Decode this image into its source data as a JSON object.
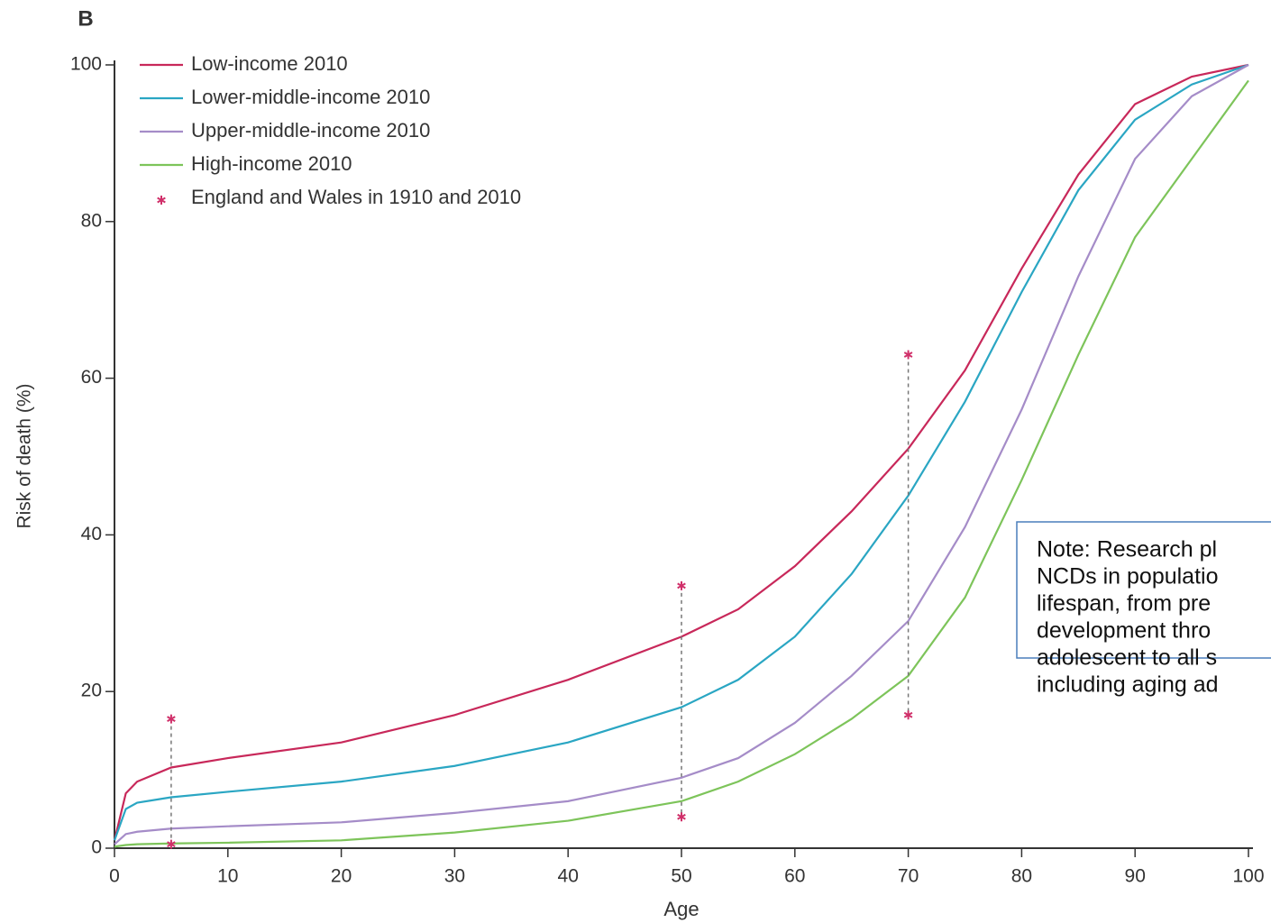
{
  "chart_data": {
    "type": "line",
    "panel_label": "B",
    "xlabel": "Age",
    "ylabel": "Risk of death (%)",
    "xlim": [
      0,
      100
    ],
    "ylim": [
      0,
      100
    ],
    "xticks": [
      0,
      10,
      20,
      30,
      40,
      50,
      60,
      70,
      80,
      90,
      100
    ],
    "yticks": [
      0,
      20,
      40,
      60,
      80,
      100
    ],
    "legend": "upper left",
    "x": [
      0,
      1,
      2,
      5,
      10,
      20,
      30,
      40,
      50,
      55,
      60,
      65,
      70,
      75,
      80,
      85,
      90,
      95,
      100
    ],
    "series": [
      {
        "name": "Low-income 2010",
        "color": "#c8285a",
        "values": [
          1,
          7,
          8.5,
          10.3,
          11.5,
          13.5,
          17,
          21.5,
          27,
          30.5,
          36,
          43,
          51,
          61,
          74,
          86,
          95,
          98.5,
          100
        ]
      },
      {
        "name": "Lower-middle-income 2010",
        "color": "#2aa6c3",
        "values": [
          1,
          5,
          5.8,
          6.5,
          7.2,
          8.5,
          10.5,
          13.5,
          18,
          21.5,
          27,
          35,
          45,
          57,
          71,
          84,
          93,
          97.5,
          100
        ]
      },
      {
        "name": "Upper-middle-income 2010",
        "color": "#a58cc8",
        "values": [
          0.5,
          1.8,
          2.1,
          2.5,
          2.8,
          3.3,
          4.5,
          6,
          9,
          11.5,
          16,
          22,
          29,
          41,
          56,
          73,
          88,
          96,
          100
        ]
      },
      {
        "name": "High-income 2010",
        "color": "#7dc45a",
        "values": [
          0.2,
          0.4,
          0.5,
          0.6,
          0.7,
          1,
          2,
          3.5,
          6,
          8.5,
          12,
          16.5,
          22,
          32,
          47,
          63,
          78,
          88,
          98
        ]
      },
      {
        "name": "England and Wales in 1910 and 2010",
        "color": "#d0306a",
        "type": "scatter",
        "x": [
          5,
          5,
          50,
          50,
          70,
          70
        ],
        "values": [
          16.5,
          0.5,
          33.5,
          4,
          63,
          17
        ]
      }
    ],
    "note": [
      "Note: Research pl",
      "NCDs in populatio",
      "lifespan, from pre",
      "development thro",
      "adolescent to all s",
      "including aging ad"
    ]
  }
}
